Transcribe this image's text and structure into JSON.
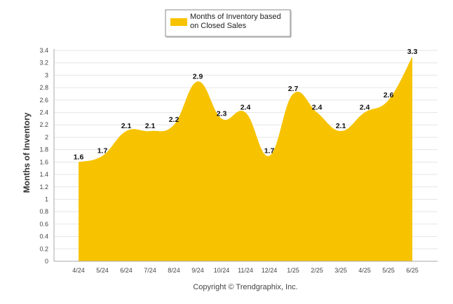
{
  "chart_data": {
    "type": "area",
    "categories": [
      "4/24",
      "5/24",
      "6/24",
      "7/24",
      "8/24",
      "9/24",
      "10/24",
      "11/24",
      "12/24",
      "1/25",
      "2/25",
      "3/25",
      "4/25",
      "5/25",
      "6/25"
    ],
    "series": [
      {
        "name": "Months of Inventory based on Closed Sales",
        "values": [
          1.6,
          1.7,
          2.1,
          2.1,
          2.2,
          2.9,
          2.3,
          2.4,
          1.7,
          2.7,
          2.4,
          2.1,
          2.4,
          2.6,
          3.3
        ],
        "labels": [
          "1.6",
          "1.7",
          "2.1",
          "2.1",
          "2.2",
          "2.9",
          "2.3",
          "2.4",
          "1.7",
          "2.7",
          "2.4",
          "2.1",
          "2.4",
          "2.6",
          "3.3"
        ],
        "color": "#F7C300"
      }
    ],
    "ylabel": "Months of Inventory",
    "xlabel": "",
    "ylim": [
      0,
      3.4
    ],
    "yticks": [
      "0",
      "0.2",
      "0.4",
      "0.6",
      "0.8",
      "1",
      "1.2",
      "1.4",
      "1.6",
      "1.8",
      "2",
      "2.2",
      "2.4",
      "2.6",
      "2.8",
      "3",
      "3.2",
      "3.4"
    ],
    "grid": true,
    "legend_position": "top-center",
    "legend_lines": [
      "Months of Inventory based",
      "on Closed Sales"
    ]
  },
  "footer": {
    "copyright": "Copyright © Trendgraphix, Inc."
  },
  "colors": {
    "area": "#F7C300",
    "grid": "#E6E6E6",
    "axis": "#AAAAAA"
  }
}
